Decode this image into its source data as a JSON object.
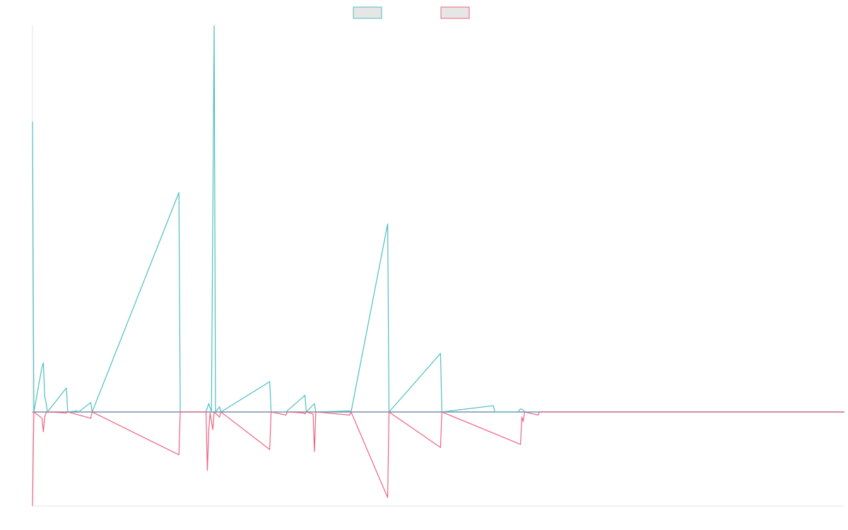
{
  "chart_data": {
    "type": "line",
    "legend_position": "top-center",
    "x_count": 600,
    "ylim": [
      -90,
      370
    ],
    "zero_line_color": "#7a8fb0",
    "axis_color": "#e6e6e6",
    "grid": false,
    "series": [
      {
        "name": "",
        "color": "#4bbfbf",
        "fill": "#e6e6e6",
        "points": [
          [
            0,
            278
          ],
          [
            1,
            0
          ],
          [
            7,
            43
          ],
          [
            8,
            47
          ],
          [
            9,
            15
          ],
          [
            10,
            9
          ],
          [
            11,
            0
          ],
          [
            25,
            23
          ],
          [
            26,
            0
          ],
          [
            33,
            1
          ],
          [
            34,
            0
          ],
          [
            43,
            9
          ],
          [
            44,
            0
          ],
          [
            108,
            210
          ],
          [
            109,
            0
          ],
          [
            128,
            0
          ],
          [
            130,
            8
          ],
          [
            132,
            0
          ],
          [
            134,
            370
          ],
          [
            135,
            0
          ],
          [
            138,
            5
          ],
          [
            139,
            0
          ],
          [
            175,
            29
          ],
          [
            176,
            0
          ],
          [
            187,
            0
          ],
          [
            201,
            16
          ],
          [
            202,
            0
          ],
          [
            208,
            8
          ],
          [
            209,
            0
          ],
          [
            234,
            1
          ],
          [
            235,
            0
          ],
          [
            262,
            180
          ],
          [
            263,
            0
          ],
          [
            301,
            56
          ],
          [
            302,
            0
          ],
          [
            340,
            6
          ],
          [
            341,
            0
          ],
          [
            358,
            0
          ],
          [
            360,
            3
          ],
          [
            362,
            2
          ],
          [
            363,
            0
          ]
        ]
      },
      {
        "name": "",
        "color": "#f0617f",
        "fill": "#e6e6e6",
        "points": [
          [
            0,
            -90
          ],
          [
            1,
            0
          ],
          [
            7,
            -6
          ],
          [
            8,
            -19
          ],
          [
            9,
            -5
          ],
          [
            10,
            -1
          ],
          [
            11,
            0
          ],
          [
            25,
            -1
          ],
          [
            26,
            0
          ],
          [
            43,
            -6
          ],
          [
            44,
            0
          ],
          [
            108,
            -41
          ],
          [
            109,
            0
          ],
          [
            128,
            0
          ],
          [
            129,
            -56
          ],
          [
            130,
            -18
          ],
          [
            131,
            -1
          ],
          [
            132,
            -9
          ],
          [
            133,
            -17
          ],
          [
            134,
            0
          ],
          [
            138,
            -5
          ],
          [
            139,
            0
          ],
          [
            175,
            -36
          ],
          [
            176,
            0
          ],
          [
            187,
            -3
          ],
          [
            188,
            0
          ],
          [
            200,
            -1
          ],
          [
            201,
            -2
          ],
          [
            202,
            0
          ],
          [
            207,
            -2
          ],
          [
            208,
            -38
          ],
          [
            209,
            0
          ],
          [
            234,
            -3
          ],
          [
            235,
            0
          ],
          [
            262,
            -82
          ],
          [
            263,
            0
          ],
          [
            301,
            -34
          ],
          [
            302,
            0
          ],
          [
            360,
            -31
          ],
          [
            361,
            -5
          ],
          [
            362,
            -9
          ],
          [
            363,
            0
          ],
          [
            373,
            -3
          ],
          [
            374,
            0
          ]
        ]
      }
    ]
  }
}
